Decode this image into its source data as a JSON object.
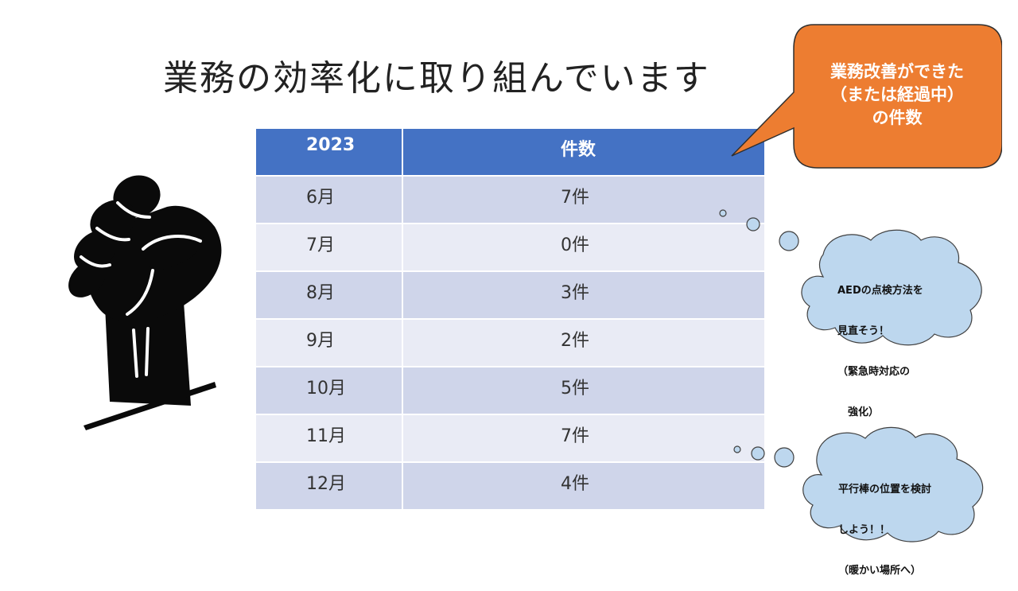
{
  "title": "業務の効率化に取り組んでいます",
  "table": {
    "headers": [
      "2023",
      "件数"
    ],
    "rows": [
      {
        "month": "6月",
        "count": "7件"
      },
      {
        "month": "7月",
        "count": "0件"
      },
      {
        "month": "8月",
        "count": "3件"
      },
      {
        "month": "9月",
        "count": "2件"
      },
      {
        "month": "10月",
        "count": "5件"
      },
      {
        "month": "11月",
        "count": "7件"
      },
      {
        "month": "12月",
        "count": "4件"
      }
    ]
  },
  "callout": {
    "line1": "業務改善ができた",
    "line2": "（または経過中）",
    "line3": "の件数"
  },
  "clouds": [
    {
      "line1": "AEDの点検方法を",
      "line2": "見直そう！",
      "line3": "（緊急時対応の",
      "line4": "　強化）"
    },
    {
      "line1": "平行棒の位置を検討",
      "line2": "しよう！！",
      "line3": "（暖かい場所へ）"
    }
  ],
  "colors": {
    "header_blue": "#4472c4",
    "row_dark": "#cfd5ea",
    "row_light": "#e9ebf5",
    "callout_orange": "#ed7d31",
    "cloud_blue": "#bdd7ee"
  },
  "icons": {
    "fist": "raised-fist-icon"
  }
}
